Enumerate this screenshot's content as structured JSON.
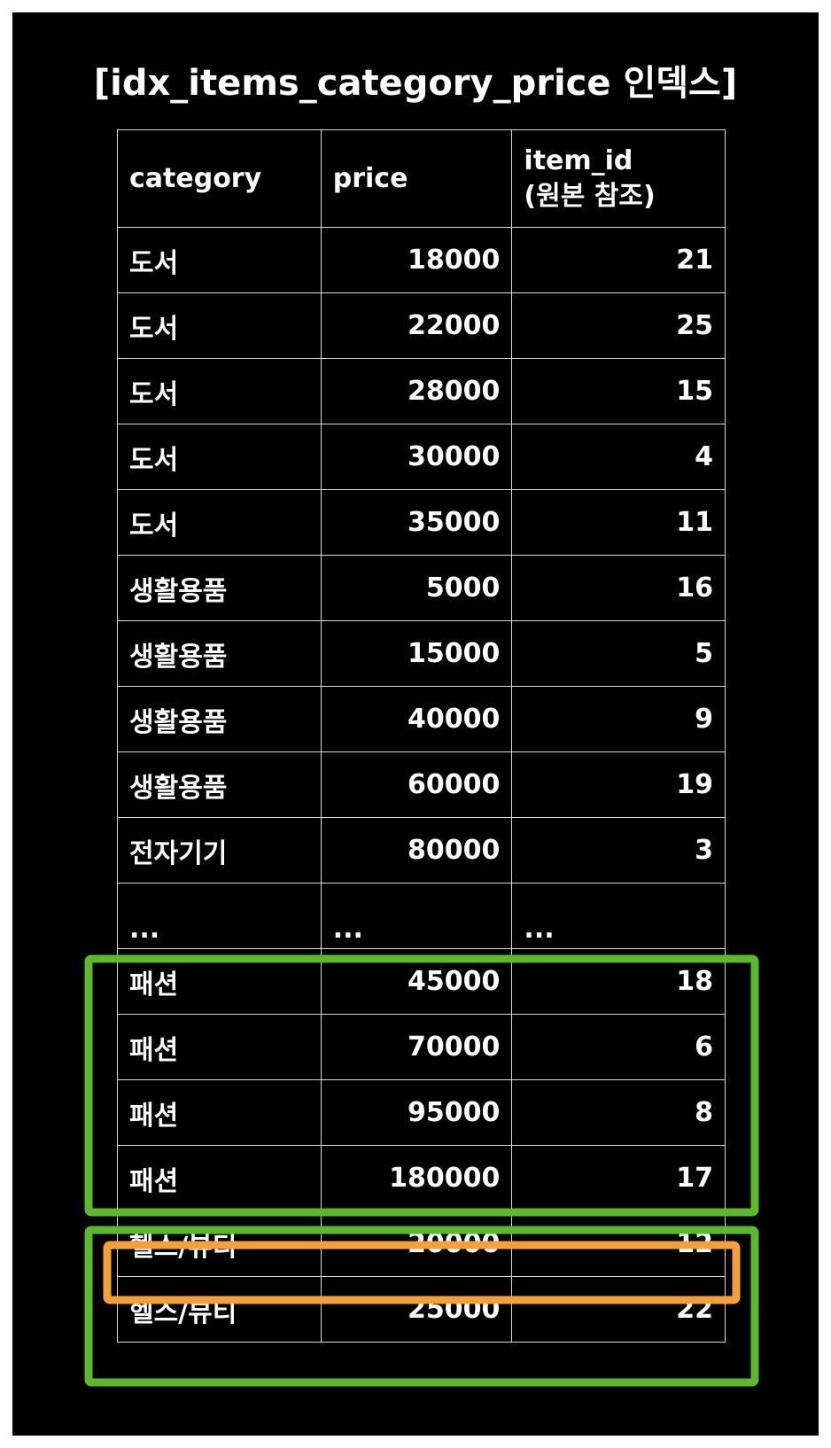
{
  "title": "[idx_items_category_price 인덱스]",
  "columns": {
    "category": "category",
    "price": "price",
    "item_id_line1": "item_id",
    "item_id_line2": "(원본 참조)"
  },
  "rows": [
    {
      "category": "도서",
      "price": "18000",
      "item_id": "21"
    },
    {
      "category": "도서",
      "price": "22000",
      "item_id": "25"
    },
    {
      "category": "도서",
      "price": "28000",
      "item_id": "15"
    },
    {
      "category": "도서",
      "price": "30000",
      "item_id": "4"
    },
    {
      "category": "도서",
      "price": "35000",
      "item_id": "11"
    },
    {
      "category": "생활용품",
      "price": "5000",
      "item_id": "16"
    },
    {
      "category": "생활용품",
      "price": "15000",
      "item_id": "5"
    },
    {
      "category": "생활용품",
      "price": "40000",
      "item_id": "9"
    },
    {
      "category": "생활용품",
      "price": "60000",
      "item_id": "19"
    },
    {
      "category": "전자기기",
      "price": "80000",
      "item_id": "3"
    },
    {
      "category": "...",
      "price": "...",
      "item_id": "..."
    },
    {
      "category": "패션",
      "price": "45000",
      "item_id": "18"
    },
    {
      "category": "패션",
      "price": "70000",
      "item_id": "6"
    },
    {
      "category": "패션",
      "price": "95000",
      "item_id": "8"
    },
    {
      "category": "패션",
      "price": "180000",
      "item_id": "17"
    },
    {
      "category": "헬스/뷰티",
      "price": "20000",
      "item_id": "12"
    },
    {
      "category": "헬스/뷰티",
      "price": "25000",
      "item_id": "22"
    }
  ],
  "highlight_colors": {
    "green": "#5cb82e",
    "orange": "#f5a03a"
  }
}
